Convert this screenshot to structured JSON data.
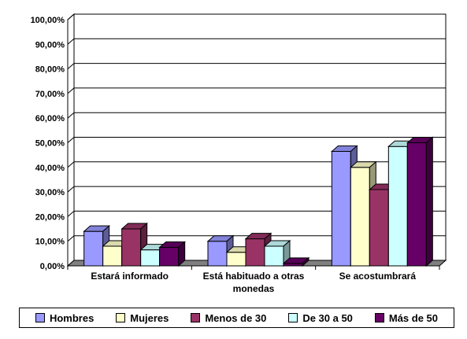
{
  "chart_data": {
    "type": "bar",
    "three_d": true,
    "categories": [
      "Estará informado",
      "Está habituado a otras monedas",
      "Se acostumbrará"
    ],
    "category_lines": [
      [
        "Estará informado"
      ],
      [
        "Está habituado a otras",
        "monedas"
      ],
      [
        "Se acostumbrará"
      ]
    ],
    "series": [
      {
        "name": "Hombres",
        "color": "#9999FF",
        "values": [
          14.0,
          10.0,
          46.5
        ]
      },
      {
        "name": "Mujeres",
        "color": "#FFFFCC",
        "values": [
          8.0,
          5.5,
          40.0
        ]
      },
      {
        "name": "Menos de 30",
        "color": "#993366",
        "values": [
          15.0,
          11.0,
          31.0
        ]
      },
      {
        "name": "De 30 a 50",
        "color": "#CCFFFF",
        "values": [
          6.5,
          8.0,
          48.5
        ]
      },
      {
        "name": "Más de 50",
        "color": "#660066",
        "values": [
          7.5,
          1.0,
          50.0
        ]
      }
    ],
    "yticks": [
      "0,00%",
      "10,00%",
      "20,00%",
      "30,00%",
      "40,00%",
      "50,00%",
      "60,00%",
      "70,00%",
      "80,00%",
      "90,00%",
      "100,00%"
    ],
    "ylim": [
      0,
      100
    ],
    "grid": true,
    "legend_position": "bottom"
  }
}
